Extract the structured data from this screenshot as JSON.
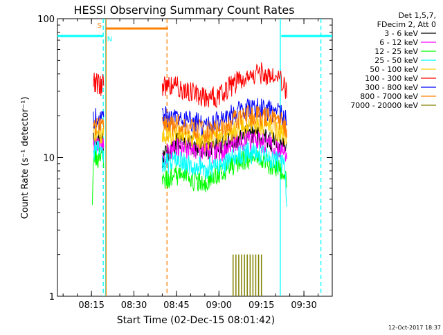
{
  "chart_data": {
    "type": "line",
    "title": "HESSI Observing Summary Count Rates",
    "xlabel": "Start Time (02-Dec-15 08:01:42)",
    "ylabel": "Count Rate (s⁻¹ detector⁻¹)",
    "yscale": "log",
    "ylim": [
      1,
      100
    ],
    "xlim": [
      "08:03",
      "09:40"
    ],
    "x_ticks": [
      "08:15",
      "08:30",
      "08:45",
      "09:00",
      "09:15",
      "09:30"
    ],
    "y_ticks": [
      "1",
      "10",
      "100"
    ],
    "timestamp": "12-Oct-2017 18:37",
    "legend": {
      "position": "top-right",
      "header": [
        "Det 1,5,7,",
        "FDecim 2, Att 0"
      ]
    },
    "series": [
      {
        "name": "3 - 6 keV",
        "color": "#000000",
        "segments": [
          {
            "x": [
              "08:15:40",
              "08:16:00",
              "08:16:30",
              "08:17:00",
              "08:17:30",
              "08:18:00",
              "08:18:30",
              "08:19:00",
              "08:19:20"
            ],
            "y": [
              13,
              13.5,
              13,
              13.6,
              13.2,
              13.4,
              13,
              13.5,
              13
            ]
          },
          {
            "x": [
              "08:40:00",
              "08:45:00",
              "08:50:00",
              "08:55:00",
              "09:00:00",
              "09:05:00",
              "09:10:00",
              "09:15:00",
              "09:20:00",
              "09:23:00",
              "09:24:00"
            ],
            "y": [
              10,
              13,
              12.5,
              11.5,
              12,
              13.5,
              14.5,
              14,
              13,
              12,
              11
            ]
          }
        ]
      },
      {
        "name": "6 - 12 keV",
        "color": "#ff00ff",
        "segments": [
          {
            "x": [
              "08:15:40",
              "08:16:30",
              "08:17:30",
              "08:18:30",
              "08:19:20"
            ],
            "y": [
              12,
              12.4,
              12.1,
              12.3,
              12
            ]
          },
          {
            "x": [
              "08:40:00",
              "08:45:00",
              "08:50:00",
              "08:55:00",
              "09:00:00",
              "09:05:00",
              "09:10:00",
              "09:15:00",
              "09:20:00",
              "09:23:00",
              "09:24:00"
            ],
            "y": [
              10,
              12,
              11.5,
              10.8,
              11,
              12.5,
              13.5,
              13,
              12,
              11,
              10
            ]
          }
        ]
      },
      {
        "name": "12 - 25 keV",
        "color": "#00ff00",
        "segments": [
          {
            "x": [
              "08:15:20",
              "08:15:40",
              "08:16:30",
              "08:17:30",
              "08:18:30",
              "08:19:20"
            ],
            "y": [
              4,
              10,
              10.5,
              10,
              10.4,
              10
            ]
          },
          {
            "x": [
              "08:40:00",
              "08:45:00",
              "08:50:00",
              "08:55:00",
              "09:00:00",
              "09:05:00",
              "09:10:00",
              "09:15:00",
              "09:20:00",
              "09:23:00",
              "09:24:00"
            ],
            "y": [
              7,
              7.5,
              7,
              6.8,
              7.5,
              9,
              10,
              9.5,
              8.5,
              8,
              6
            ]
          }
        ]
      },
      {
        "name": "25 - 50 keV",
        "color": "#00ffff",
        "segments": [
          {
            "x": [
              "08:15:40",
              "08:16:30",
              "08:17:30",
              "08:18:30",
              "08:19:20"
            ],
            "y": [
              11,
              11.8,
              11.2,
              11.6,
              11
            ]
          },
          {
            "x": [
              "08:40:00",
              "08:45:00",
              "08:50:00",
              "08:55:00",
              "09:00:00",
              "09:05:00",
              "09:10:00",
              "09:15:00",
              "09:20:00",
              "09:23:00",
              "09:24:00"
            ],
            "y": [
              9,
              9.5,
              9,
              8.5,
              8.8,
              10,
              11,
              10.5,
              9.5,
              9,
              4
            ]
          }
        ]
      },
      {
        "name": "50 - 100 keV",
        "color": "#ffcc00",
        "segments": [
          {
            "x": [
              "08:15:40",
              "08:16:30",
              "08:17:30",
              "08:18:30",
              "08:19:20"
            ],
            "y": [
              15,
              15.5,
              15.2,
              15.4,
              15
            ]
          },
          {
            "x": [
              "08:40:00",
              "08:45:00",
              "08:50:00",
              "08:55:00",
              "09:00:00",
              "09:05:00",
              "09:10:00",
              "09:15:00",
              "09:20:00",
              "09:23:00",
              "09:24:00"
            ],
            "y": [
              15,
              15,
              14,
              13.5,
              14.5,
              16,
              17.5,
              17,
              16,
              15,
              14
            ]
          }
        ]
      },
      {
        "name": "100 - 300 keV",
        "color": "#ff0000",
        "segments": [
          {
            "x": [
              "08:15:40",
              "08:16:00",
              "08:16:30",
              "08:17:00",
              "08:17:30",
              "08:18:00",
              "08:18:30",
              "08:19:00",
              "08:19:20"
            ],
            "y": [
              34,
              35,
              33,
              35,
              34,
              35,
              33,
              34,
              33
            ]
          },
          {
            "x": [
              "08:40:00",
              "08:45:00",
              "08:50:00",
              "08:55:00",
              "09:00:00",
              "09:05:00",
              "09:10:00",
              "09:15:00",
              "09:20:00",
              "09:23:00",
              "09:24:00"
            ],
            "y": [
              33,
              33,
              30,
              27,
              28,
              34,
              40,
              41,
              38,
              34,
              30
            ]
          }
        ]
      },
      {
        "name": "300 - 800 keV",
        "color": "#0000ff",
        "segments": [
          {
            "x": [
              "08:15:40",
              "08:16:30",
              "08:17:30",
              "08:18:30",
              "08:19:20"
            ],
            "y": [
              19,
              19.5,
              19,
              19.4,
              19
            ]
          },
          {
            "x": [
              "08:40:00",
              "08:45:00",
              "08:50:00",
              "08:55:00",
              "09:00:00",
              "09:05:00",
              "09:10:00",
              "09:15:00",
              "09:20:00",
              "09:23:00",
              "09:24:00"
            ],
            "y": [
              20,
              19.5,
              18.5,
              17.5,
              18.5,
              21,
              23.5,
              23,
              21.5,
              20,
              18
            ]
          }
        ]
      },
      {
        "name": "800 - 7000 keV",
        "color": "#ff8000",
        "segments": [
          {
            "x": [
              "08:15:40",
              "08:16:30",
              "08:17:30",
              "08:18:30",
              "08:19:20"
            ],
            "y": [
              17,
              17.5,
              17.1,
              17.4,
              17
            ]
          },
          {
            "x": [
              "08:40:00",
              "08:45:00",
              "08:50:00",
              "08:55:00",
              "09:00:00",
              "09:05:00",
              "09:10:00",
              "09:15:00",
              "09:20:00",
              "09:23:00",
              "09:24:00"
            ],
            "y": [
              17.5,
              17.5,
              16.5,
              15.5,
              16.5,
              18.5,
              20.5,
              20,
              19,
              17.5,
              16
            ]
          }
        ]
      },
      {
        "name": "7000 - 20000 keV",
        "color": "#808000",
        "spikes": {
          "x": [
            "09:05:00",
            "09:06:00",
            "09:07:00",
            "09:08:00",
            "09:09:00",
            "09:10:00",
            "09:11:00",
            "09:12:00",
            "09:13:00",
            "09:14:00",
            "09:15:00"
          ],
          "y": [
            2,
            2,
            2,
            2,
            2,
            2,
            2,
            2,
            2,
            2,
            2
          ]
        }
      }
    ],
    "annotations": [
      {
        "text": "S",
        "color": "#ff8000",
        "type": "saa-start",
        "time": "08:20:00"
      },
      {
        "text": "N",
        "color": "#00ffff",
        "type": "night-start",
        "time": "08:20:00"
      }
    ],
    "flags": [
      {
        "name": "night",
        "color": "#00ffff",
        "level": 75,
        "intervals": [
          [
            "08:03:00",
            "08:19:10"
          ],
          [
            "09:22:00",
            "09:40:00"
          ]
        ]
      },
      {
        "name": "saa",
        "color": "#ff8000",
        "level": 85,
        "intervals": [
          [
            "08:20:00",
            "08:42:00"
          ]
        ]
      }
    ],
    "vlines": [
      {
        "x": "08:19:10",
        "color": "#00ffff",
        "style": "dashed"
      },
      {
        "x": "08:20:00",
        "color": "#00ffff",
        "style": "solid"
      },
      {
        "x": "08:20:10",
        "color": "#ff8000",
        "style": "solid"
      },
      {
        "x": "08:41:40",
        "color": "#ff8000",
        "style": "dashed"
      },
      {
        "x": "09:21:40",
        "color": "#00ffff",
        "style": "solid"
      },
      {
        "x": "09:36:00",
        "color": "#00ffff",
        "style": "dashed"
      }
    ]
  }
}
